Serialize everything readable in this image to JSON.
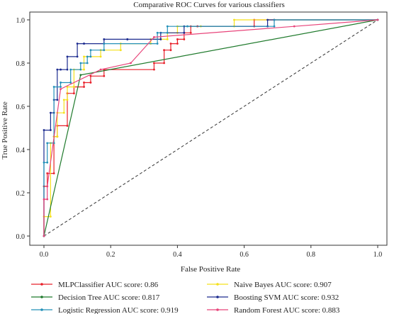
{
  "chart_data": {
    "type": "line",
    "title": "Comparative ROC Curves for various classifiers",
    "xlabel": "False Positive Rate",
    "ylabel": "True Positive Rate",
    "xlim": [
      0,
      1
    ],
    "ylim": [
      0,
      1
    ],
    "xticks": [
      "0.0",
      "0.2",
      "0.4",
      "0.6",
      "0.8",
      "1.0"
    ],
    "yticks": [
      "0.0",
      "0.2",
      "0.4",
      "0.6",
      "0.8",
      "1.0"
    ],
    "grid": false,
    "legend_placement": "bottom",
    "series": [
      {
        "name": "MLPClassifier AUC score: 0.86",
        "color": "#e8202a",
        "x": [
          0,
          0,
          0.01,
          0.01,
          0.03,
          0.03,
          0.04,
          0.04,
          0.07,
          0.07,
          0.09,
          0.09,
          0.12,
          0.12,
          0.14,
          0.14,
          0.18,
          0.18,
          0.33,
          0.33,
          0.36,
          0.36,
          0.38,
          0.38,
          0.4,
          0.4,
          0.42,
          0.42,
          0.44,
          0.44,
          0.46,
          0.46,
          0.63,
          0.63,
          0.69,
          0.69,
          1.0
        ],
        "y": [
          0,
          0.23,
          0.23,
          0.29,
          0.29,
          0.46,
          0.46,
          0.51,
          0.51,
          0.66,
          0.66,
          0.69,
          0.69,
          0.71,
          0.71,
          0.74,
          0.74,
          0.77,
          0.77,
          0.8,
          0.8,
          0.86,
          0.86,
          0.89,
          0.89,
          0.91,
          0.91,
          0.94,
          0.94,
          0.97,
          0.97,
          0.97,
          0.97,
          1.0,
          1.0,
          1.0,
          1.0
        ]
      },
      {
        "name": "Naive Bayes AUC score: 0.907",
        "color": "#f5e11c",
        "x": [
          0,
          0,
          0.02,
          0.02,
          0.03,
          0.03,
          0.04,
          0.04,
          0.06,
          0.06,
          0.07,
          0.07,
          0.09,
          0.09,
          0.12,
          0.12,
          0.17,
          0.17,
          0.23,
          0.23,
          0.32,
          0.32,
          0.37,
          0.37,
          0.4,
          0.4,
          0.47,
          0.47,
          0.57,
          0.57,
          1.0
        ],
        "y": [
          0,
          0.09,
          0.09,
          0.43,
          0.43,
          0.46,
          0.46,
          0.57,
          0.57,
          0.63,
          0.63,
          0.69,
          0.69,
          0.77,
          0.77,
          0.83,
          0.83,
          0.86,
          0.86,
          0.89,
          0.89,
          0.91,
          0.91,
          0.94,
          0.94,
          0.97,
          0.97,
          0.97,
          0.97,
          1.0,
          1.0
        ]
      },
      {
        "name": "Decision Tree AUC score: 0.817",
        "color": "#1f7a2c",
        "x": [
          0,
          0.11,
          1.0
        ],
        "y": [
          0,
          0.745,
          1.0
        ]
      },
      {
        "name": "Boosting SVM AUC score: 0.932",
        "color": "#1c2b8f",
        "x": [
          0,
          0,
          0.02,
          0.02,
          0.03,
          0.03,
          0.04,
          0.04,
          0.05,
          0.05,
          0.07,
          0.07,
          0.1,
          0.1,
          0.12,
          0.12,
          0.18,
          0.18,
          0.25,
          0.25,
          0.35,
          0.35,
          0.42,
          0.42,
          0.67,
          0.67,
          1.0
        ],
        "y": [
          0,
          0.49,
          0.49,
          0.57,
          0.57,
          0.63,
          0.63,
          0.77,
          0.77,
          0.77,
          0.77,
          0.83,
          0.83,
          0.89,
          0.89,
          0.89,
          0.89,
          0.91,
          0.91,
          0.91,
          0.91,
          0.94,
          0.94,
          0.97,
          0.97,
          1.0,
          1.0
        ]
      },
      {
        "name": "Logistic Regression AUC score: 0.919",
        "color": "#2390b8",
        "x": [
          0,
          0,
          0.01,
          0.01,
          0.03,
          0.03,
          0.05,
          0.05,
          0.08,
          0.08,
          0.11,
          0.11,
          0.13,
          0.13,
          0.14,
          0.14,
          0.18,
          0.18,
          0.34,
          0.34,
          0.37,
          0.37,
          0.43,
          0.43,
          0.69,
          0.69,
          1.0
        ],
        "y": [
          0,
          0.34,
          0.34,
          0.43,
          0.43,
          0.69,
          0.69,
          0.71,
          0.71,
          0.77,
          0.77,
          0.8,
          0.8,
          0.83,
          0.83,
          0.86,
          0.86,
          0.89,
          0.89,
          0.94,
          0.94,
          0.97,
          0.97,
          0.97,
          0.97,
          1.0,
          1.0
        ]
      },
      {
        "name": "Random Forest AUC score: 0.883",
        "color": "#e8447a",
        "x": [
          0,
          0,
          0.01,
          0.01,
          0.05,
          0.17,
          0.26,
          0.33,
          0.75,
          1.0
        ],
        "y": [
          0,
          0.17,
          0.17,
          0.23,
          0.68,
          0.77,
          0.8,
          0.92,
          0.97,
          1.0
        ]
      }
    ],
    "diagonal": {
      "x": [
        0,
        1
      ],
      "y": [
        0,
        1
      ],
      "style": "dashed",
      "color": "#333333"
    }
  }
}
